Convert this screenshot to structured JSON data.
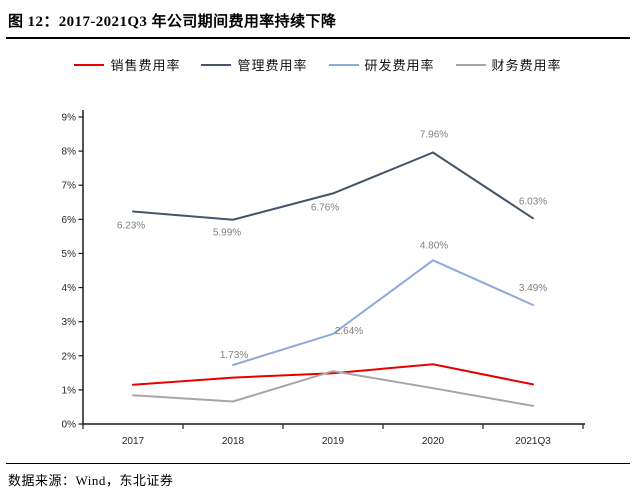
{
  "page": {
    "title": "图 12：2017-2021Q3 年公司期间费用率持续下降",
    "source_label": "数据来源：Wind，东北证券"
  },
  "chart_data": {
    "type": "line",
    "title": "2017-2021Q3 年公司期间费用率持续下降",
    "categories": [
      "2017",
      "2018",
      "2019",
      "2020",
      "2021Q3"
    ],
    "ytick_labels": [
      "0%",
      "1%",
      "2%",
      "3%",
      "4%",
      "5%",
      "6%",
      "7%",
      "8%",
      "9%"
    ],
    "ylim": [
      0,
      9
    ],
    "grid": false,
    "legend_position": "top",
    "axis_color": "#1a1a1a",
    "series": [
      {
        "name": "销售费用率",
        "color": "#e60000",
        "values": [
          1.15,
          1.36,
          1.49,
          1.75,
          1.16
        ],
        "labels": [
          null,
          null,
          null,
          null,
          null
        ],
        "label_offsets": [
          null,
          null,
          null,
          null,
          null
        ]
      },
      {
        "name": "管理费用率",
        "color": "#44546a",
        "values": [
          6.23,
          5.99,
          6.76,
          7.96,
          6.03
        ],
        "labels": [
          "6.23%",
          "5.99%",
          "6.76%",
          "7.96%",
          "6.03%"
        ],
        "label_offsets": [
          [
            -2,
            17
          ],
          [
            -6,
            16
          ],
          [
            -8,
            17
          ],
          [
            1,
            -15
          ],
          [
            0,
            -14
          ]
        ]
      },
      {
        "name": "研发费用率",
        "color": "#8ea9db",
        "values": [
          null,
          1.73,
          2.64,
          4.8,
          3.49
        ],
        "labels": [
          null,
          "1.73%",
          "2.64%",
          "4.80%",
          "3.49%"
        ],
        "label_offsets": [
          null,
          [
            1,
            -7
          ],
          [
            16,
            0
          ],
          [
            1,
            -12
          ],
          [
            0,
            -14
          ]
        ]
      },
      {
        "name": "财务费用率",
        "color": "#a6a6a6",
        "values": [
          0.84,
          0.66,
          1.55,
          1.05,
          0.53
        ],
        "labels": [
          null,
          null,
          null,
          null,
          null
        ],
        "label_offsets": [
          null,
          null,
          null,
          null,
          null
        ]
      }
    ]
  }
}
